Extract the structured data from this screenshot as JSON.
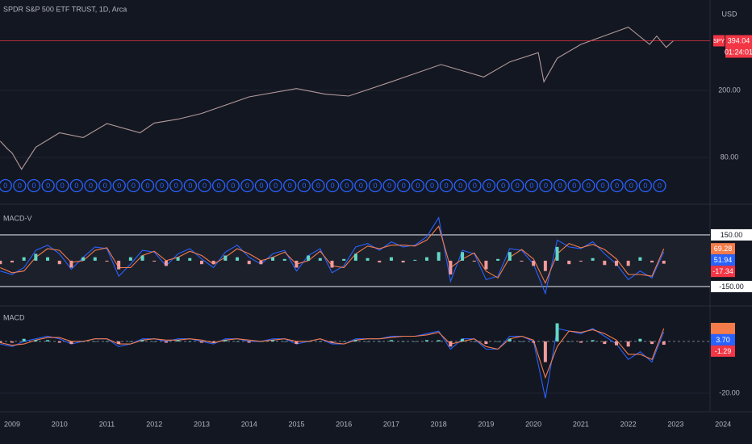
{
  "chart_data": [
    {
      "type": "line",
      "title": "SPDR S&P 500 ETF TRUST, 1D, Arca",
      "axis_label": "USD",
      "symbol": "SPY",
      "countdown": "01:24:01",
      "log_scale": true,
      "color": "#b39a9a",
      "last_color": "#f23645",
      "xlim": [
        2008.745,
        2024.61
      ],
      "ylim": [
        43.6,
        688
      ],
      "yticks": [
        {
          "value": 80,
          "label": "80.00"
        },
        {
          "value": 200,
          "label": "200.00"
        }
      ],
      "grid": true,
      "x": [
        2008.75,
        2008.9,
        2009.0,
        2009.2,
        2009.5,
        2010,
        2010.5,
        2011,
        2011.7,
        2012,
        2012.5,
        2013,
        2014,
        2015,
        2015.6,
        2016.1,
        2017,
        2018.05,
        2018.95,
        2019.5,
        2020.1,
        2020.22,
        2020.5,
        2021,
        2022.0,
        2022.45,
        2022.6,
        2022.8,
        2022.95
      ],
      "values": [
        100,
        90,
        85,
        68,
        92,
        112,
        105,
        127,
        112,
        128,
        135,
        146,
        183,
        205,
        190,
        185,
        225,
        285,
        240,
        295,
        335,
        225,
        310,
        375,
        475,
        375,
        420,
        360,
        394.04
      ],
      "marker_label": "0",
      "marker_color": "#2962ff",
      "markers_x": [
        2008.86,
        2009.16,
        2009.46,
        2009.76,
        2010.06,
        2010.36,
        2010.66,
        2010.96,
        2011.26,
        2011.56,
        2011.86,
        2012.16,
        2012.46,
        2012.76,
        2013.06,
        2013.36,
        2013.66,
        2013.96,
        2014.26,
        2014.56,
        2014.86,
        2015.16,
        2015.46,
        2015.76,
        2016.06,
        2016.36,
        2016.66,
        2016.96,
        2017.26,
        2017.56,
        2017.86,
        2018.16,
        2018.46,
        2018.76,
        2019.06,
        2019.36,
        2019.66,
        2019.96,
        2020.26,
        2020.56,
        2020.86,
        2021.16,
        2021.46,
        2021.76,
        2022.06,
        2022.36,
        2022.66
      ]
    },
    {
      "type": "macd",
      "title": "MACD-V",
      "xlim": [
        2008.745,
        2024.61
      ],
      "ylim": [
        -258,
        309
      ],
      "yticks": [
        {
          "value": 150,
          "label": "150.00"
        },
        {
          "value": -150,
          "label": "-150.00"
        }
      ],
      "tick_lines": true,
      "band_color": "#1c202b",
      "x": [
        2008.75,
        2009,
        2009.25,
        2009.5,
        2009.75,
        2010,
        2010.25,
        2010.5,
        2010.75,
        2011,
        2011.25,
        2011.5,
        2011.75,
        2012,
        2012.25,
        2012.5,
        2012.75,
        2013,
        2013.25,
        2013.5,
        2013.75,
        2014,
        2014.25,
        2014.5,
        2014.75,
        2015,
        2015.25,
        2015.5,
        2015.75,
        2016,
        2016.25,
        2016.5,
        2016.75,
        2017,
        2017.25,
        2017.5,
        2017.75,
        2018,
        2018.25,
        2018.5,
        2018.75,
        2019,
        2019.25,
        2019.5,
        2019.75,
        2020,
        2020.25,
        2020.5,
        2020.75,
        2021,
        2021.25,
        2021.5,
        2021.75,
        2022,
        2022.25,
        2022.5,
        2022.75
      ],
      "series": [
        {
          "kind": "line",
          "color": "#2962ff",
          "values": [
            -60,
            -80,
            -40,
            60,
            90,
            40,
            -50,
            20,
            80,
            70,
            -90,
            -20,
            60,
            50,
            -30,
            40,
            70,
            10,
            -40,
            50,
            90,
            20,
            -20,
            40,
            60,
            -60,
            30,
            70,
            -70,
            -30,
            80,
            100,
            60,
            110,
            80,
            90,
            140,
            250,
            -120,
            60,
            40,
            -110,
            -90,
            70,
            60,
            -20,
            -190,
            120,
            80,
            70,
            110,
            40,
            -20,
            -110,
            -60,
            -100,
            51.94
          ]
        },
        {
          "kind": "line",
          "color": "#f57c4a",
          "values": [
            -40,
            -70,
            -60,
            20,
            70,
            60,
            -10,
            0,
            60,
            75,
            -40,
            -40,
            30,
            55,
            0,
            20,
            55,
            30,
            -20,
            20,
            70,
            40,
            0,
            20,
            50,
            -20,
            0,
            55,
            -30,
            -40,
            40,
            85,
            70,
            90,
            90,
            85,
            120,
            200,
            -40,
            10,
            45,
            -60,
            -100,
            20,
            65,
            10,
            -130,
            40,
            100,
            75,
            95,
            65,
            10,
            -80,
            -80,
            -90,
            69.28
          ]
        },
        {
          "kind": "histogram",
          "colors": [
            "#63d6c6",
            "#f49b9b"
          ],
          "values": [
            -20,
            -10,
            20,
            40,
            20,
            -20,
            -40,
            20,
            20,
            -5,
            -50,
            20,
            30,
            -5,
            -30,
            20,
            15,
            -20,
            -20,
            30,
            20,
            -20,
            -20,
            20,
            10,
            -40,
            30,
            15,
            -40,
            10,
            40,
            15,
            -10,
            20,
            -10,
            5,
            20,
            50,
            -80,
            50,
            -5,
            -50,
            10,
            50,
            -5,
            -30,
            -60,
            80,
            -20,
            -5,
            15,
            -25,
            -30,
            -30,
            20,
            -10,
            -17.34
          ]
        }
      ]
    },
    {
      "type": "macd",
      "title": "MACD",
      "xlim": [
        2008.745,
        2024.61
      ],
      "ylim": [
        -27.2,
        13.4
      ],
      "yticks": [
        {
          "value": -20,
          "label": "-20.00"
        }
      ],
      "grid": true,
      "zero_line": "dashed",
      "xticks": [
        2009,
        2010,
        2011,
        2012,
        2013,
        2014,
        2015,
        2016,
        2017,
        2018,
        2019,
        2020,
        2021,
        2022,
        2023,
        2024
      ],
      "x": [
        2008.75,
        2009,
        2009.25,
        2009.5,
        2009.75,
        2010,
        2010.25,
        2010.5,
        2010.75,
        2011,
        2011.25,
        2011.5,
        2011.75,
        2012,
        2012.25,
        2012.5,
        2012.75,
        2013,
        2013.25,
        2013.5,
        2013.75,
        2014,
        2014.25,
        2014.5,
        2014.75,
        2015,
        2015.25,
        2015.5,
        2015.75,
        2016,
        2016.25,
        2016.5,
        2016.75,
        2017,
        2017.25,
        2017.5,
        2017.75,
        2018,
        2018.25,
        2018.5,
        2018.75,
        2019,
        2019.25,
        2019.5,
        2019.75,
        2020,
        2020.25,
        2020.5,
        2020.75,
        2021,
        2021.25,
        2021.5,
        2021.75,
        2022,
        2022.25,
        2022.5,
        2022.75
      ],
      "series": [
        {
          "kind": "line",
          "color": "#2962ff",
          "last_label": "3.70",
          "values": [
            -1,
            -2,
            0,
            1,
            2,
            1,
            -1,
            0,
            1,
            1,
            -2,
            -1,
            1,
            1,
            0,
            1,
            1,
            0,
            -1,
            1,
            1,
            0,
            0,
            1,
            1,
            -1,
            0,
            1,
            -1,
            -1,
            1,
            1,
            1,
            2,
            2,
            2,
            3,
            4,
            -3,
            1,
            1,
            -3,
            -3,
            2,
            2,
            0,
            -22,
            5,
            4,
            3,
            5,
            2,
            -1,
            -7,
            -4,
            -8,
            3.7
          ]
        },
        {
          "kind": "line",
          "color": "#f57c4a",
          "hide_last": true,
          "values": [
            -0.5,
            -1.5,
            -1,
            0.5,
            1.5,
            1.5,
            0,
            0,
            1,
            1,
            -1,
            -1,
            0.5,
            1,
            0.5,
            0.5,
            1,
            0.5,
            -0.5,
            0.5,
            1,
            0.5,
            0,
            0.5,
            1,
            0,
            0,
            1,
            -0.5,
            -1,
            0.5,
            1,
            1,
            1.5,
            2,
            2,
            2.5,
            3.5,
            -1,
            0,
            1,
            -2,
            -3,
            1,
            2,
            0.5,
            -14,
            -2,
            4,
            3.5,
            4.5,
            3,
            0.5,
            -5,
            -5,
            -7,
            4.99
          ]
        },
        {
          "kind": "histogram",
          "colors": [
            "#63d6c6",
            "#f49b9b"
          ],
          "values": [
            -0.5,
            -0.5,
            1,
            0.5,
            0.5,
            -0.5,
            -1,
            0,
            0,
            0,
            -1,
            0,
            0.5,
            0,
            -0.5,
            0.5,
            0,
            -0.5,
            -0.5,
            0.5,
            0,
            -0.5,
            0,
            0.5,
            0,
            -1,
            0,
            0,
            -0.5,
            0,
            0.5,
            0,
            0,
            0.5,
            0,
            0,
            0.5,
            0.5,
            -2,
            1,
            0,
            -1,
            0,
            1,
            0,
            -0.5,
            -8,
            7,
            0,
            -0.5,
            0.5,
            -1,
            -1.5,
            -2,
            1,
            -1,
            -1.29
          ]
        }
      ]
    }
  ]
}
